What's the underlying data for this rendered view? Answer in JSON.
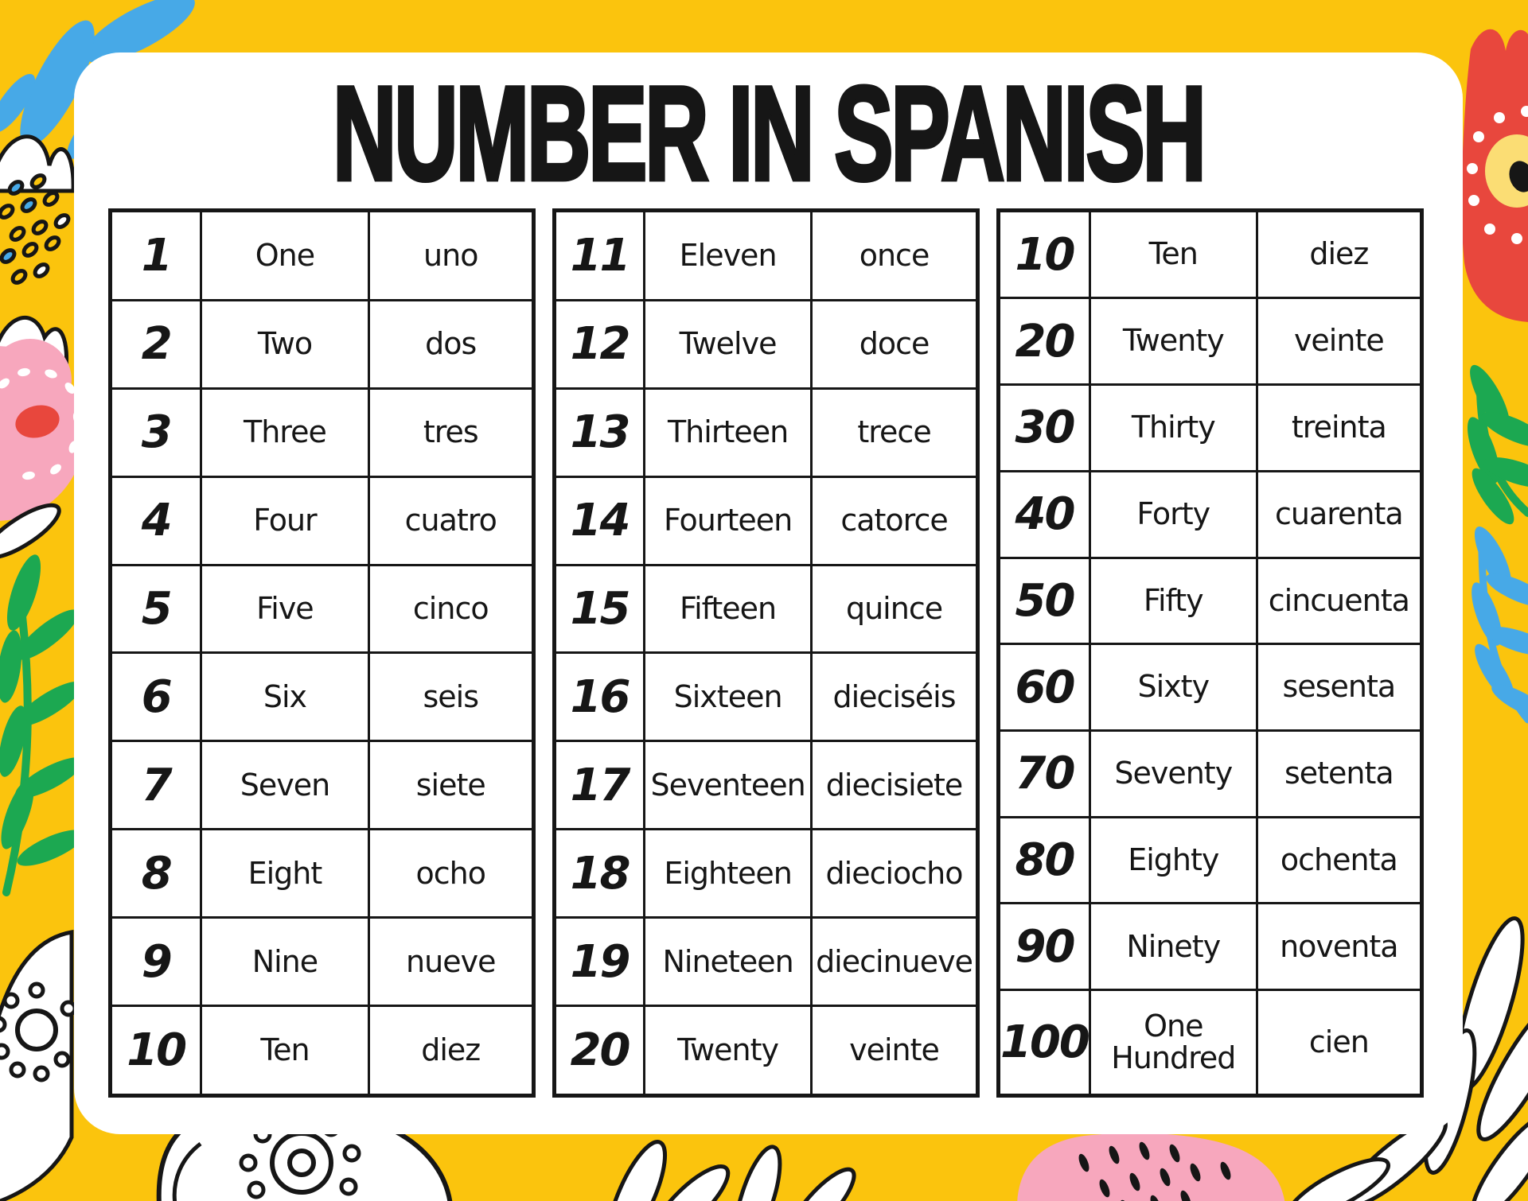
{
  "title": "NUMBER IN SPANISH",
  "colors": {
    "background": "#FBC40D",
    "card": "#FFFFFF",
    "ink": "#161616",
    "blue": "#47A9E7",
    "green": "#1CA851",
    "pink": "#F7A7BD",
    "red": "#E8473D",
    "flower_center": "#FBDD74"
  },
  "tables": [
    {
      "name": "ones",
      "rows": [
        {
          "num": "1",
          "en": "One",
          "es": "uno"
        },
        {
          "num": "2",
          "en": "Two",
          "es": "dos"
        },
        {
          "num": "3",
          "en": "Three",
          "es": "tres"
        },
        {
          "num": "4",
          "en": "Four",
          "es": "cuatro"
        },
        {
          "num": "5",
          "en": "Five",
          "es": "cinco"
        },
        {
          "num": "6",
          "en": "Six",
          "es": "seis"
        },
        {
          "num": "7",
          "en": "Seven",
          "es": "siete"
        },
        {
          "num": "8",
          "en": "Eight",
          "es": "ocho"
        },
        {
          "num": "9",
          "en": "Nine",
          "es": "nueve"
        },
        {
          "num": "10",
          "en": "Ten",
          "es": "diez"
        }
      ]
    },
    {
      "name": "teens",
      "rows": [
        {
          "num": "11",
          "en": "Eleven",
          "es": "once"
        },
        {
          "num": "12",
          "en": "Twelve",
          "es": "doce"
        },
        {
          "num": "13",
          "en": "Thirteen",
          "es": "trece"
        },
        {
          "num": "14",
          "en": "Fourteen",
          "es": "catorce"
        },
        {
          "num": "15",
          "en": "Fifteen",
          "es": "quince"
        },
        {
          "num": "16",
          "en": "Sixteen",
          "es": "dieciséis"
        },
        {
          "num": "17",
          "en": "Seventeen",
          "es": "diecisiete"
        },
        {
          "num": "18",
          "en": "Eighteen",
          "es": "dieciocho"
        },
        {
          "num": "19",
          "en": "Nineteen",
          "es": "diecinueve"
        },
        {
          "num": "20",
          "en": "Twenty",
          "es": "veinte"
        }
      ]
    },
    {
      "name": "tens",
      "rows": [
        {
          "num": "10",
          "en": "Ten",
          "es": "diez"
        },
        {
          "num": "20",
          "en": "Twenty",
          "es": "veinte"
        },
        {
          "num": "30",
          "en": "Thirty",
          "es": "treinta"
        },
        {
          "num": "40",
          "en": "Forty",
          "es": "cuarenta"
        },
        {
          "num": "50",
          "en": "Fifty",
          "es": "cincuenta"
        },
        {
          "num": "60",
          "en": "Sixty",
          "es": "sesenta"
        },
        {
          "num": "70",
          "en": "Seventy",
          "es": "setenta"
        },
        {
          "num": "80",
          "en": "Eighty",
          "es": "ochenta"
        },
        {
          "num": "90",
          "en": "Ninety",
          "es": "noventa"
        },
        {
          "num": "100",
          "en": "One Hundred",
          "es": "cien"
        }
      ]
    }
  ]
}
